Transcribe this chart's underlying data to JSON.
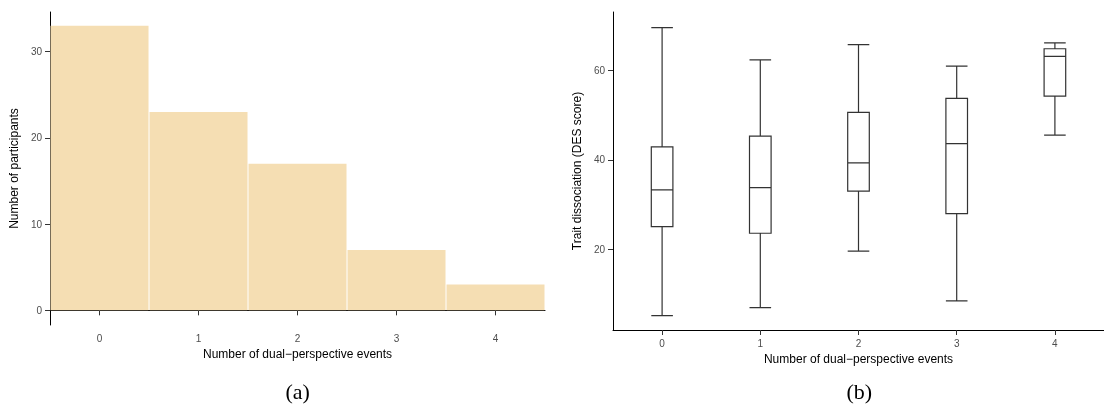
{
  "chart_data": [
    {
      "type": "bar",
      "categories": [
        "0",
        "1",
        "2",
        "3",
        "4"
      ],
      "values": [
        33,
        23,
        17,
        7,
        3
      ],
      "color": "#f5deb3",
      "xlabel": "Number of dual−perspective events",
      "ylabel": "Number of participants",
      "ylim": [
        -1.7,
        34.6
      ],
      "yticks": [
        0,
        10,
        20,
        30
      ],
      "annotations": [
        "(a)"
      ]
    },
    {
      "type": "box",
      "categories": [
        "0",
        "1",
        "2",
        "3",
        "4"
      ],
      "xlabel": "Number of dual−perspective events",
      "ylabel": "Trait dissociation (DES score)",
      "ylim": [
        2,
        73
      ],
      "yticks": [
        20,
        40,
        60
      ],
      "annotations": [
        "(b)"
      ],
      "boxes": [
        {
          "low": 5.2,
          "q1": 25.1,
          "median": 33.3,
          "q3": 42.9,
          "high": 69.5
        },
        {
          "low": 7.0,
          "q1": 23.6,
          "median": 33.8,
          "q3": 45.3,
          "high": 62.3
        },
        {
          "low": 19.6,
          "q1": 33.0,
          "median": 39.3,
          "q3": 50.6,
          "high": 65.7
        },
        {
          "low": 8.5,
          "q1": 28.0,
          "median": 43.6,
          "q3": 53.7,
          "high": 60.9
        },
        {
          "low": 45.5,
          "q1": 54.2,
          "median": 63.1,
          "q3": 64.8,
          "high": 66.1
        }
      ]
    }
  ]
}
